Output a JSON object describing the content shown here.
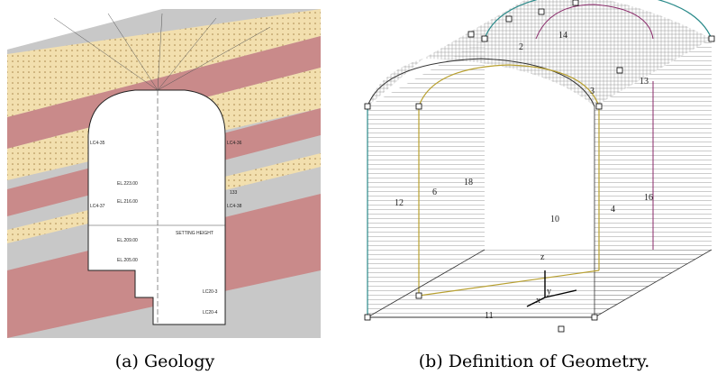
{
  "figure": {
    "panels": [
      {
        "caption": "(a) Geology",
        "labels": [
          "LC4-35",
          "LC4-36",
          "LC4-37",
          "LC4-38",
          "EL.223.00",
          "EL.216.00",
          "EL.209.00",
          "EL.205.00",
          "SETTING HEIGHT",
          "LC20-3",
          "LC20-4",
          "133"
        ]
      },
      {
        "caption": "(b) Definition of Geometry.",
        "labels": [
          "12",
          "6",
          "18",
          "10",
          "4",
          "16",
          "11",
          "13",
          "14",
          "2",
          "3",
          "x",
          "y",
          "z"
        ]
      }
    ]
  }
}
